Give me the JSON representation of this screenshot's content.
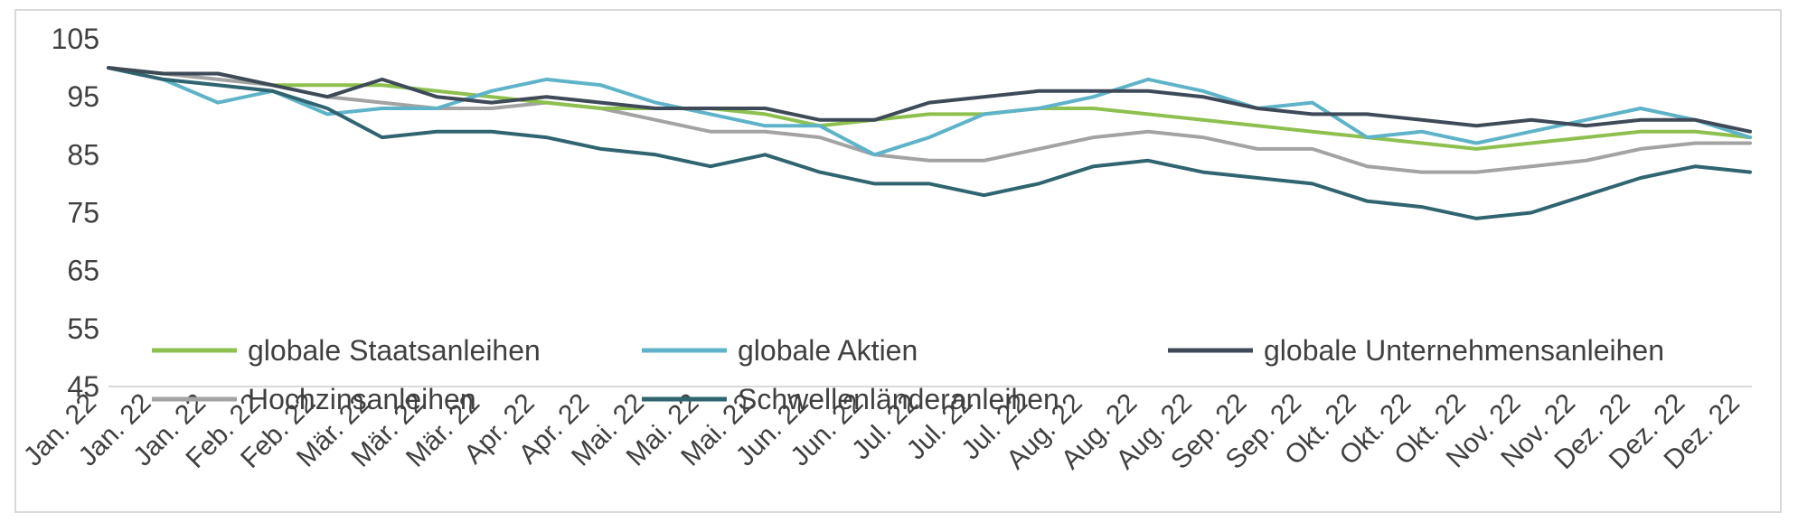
{
  "chart_data": {
    "type": "line",
    "title": "",
    "xlabel": "",
    "ylabel": "",
    "ylim": [
      45,
      105
    ],
    "yticks": [
      45,
      55,
      65,
      75,
      85,
      95,
      105
    ],
    "x_tick_labels": [
      "Jan. 22",
      "Jan. 22",
      "Jan. 22",
      "Feb. 22",
      "Feb. 22",
      "Mär. 22",
      "Mär. 22",
      "Mär. 22",
      "Apr. 22",
      "Apr. 22",
      "Mai. 22",
      "Mai. 22",
      "Mai. 22",
      "Jun. 22",
      "Jun. 22",
      "Jul. 22",
      "Jul. 22",
      "Jul. 22",
      "Aug. 22",
      "Aug. 22",
      "Aug. 22",
      "Sep. 22",
      "Sep. 22",
      "Okt. 22",
      "Okt. 22",
      "Okt. 22",
      "Nov. 22",
      "Nov. 22",
      "Dez. 22",
      "Dez. 22",
      "Dez. 22"
    ],
    "grid": false,
    "legend_position": "bottom-inside",
    "series": [
      {
        "name": "globale Staatsanleihen",
        "color": "#8dc04f",
        "values": [
          100,
          99,
          99,
          97,
          97,
          97,
          96,
          95,
          94,
          93,
          93,
          93,
          92,
          90,
          91,
          92,
          92,
          93,
          93,
          92,
          91,
          90,
          89,
          88,
          87,
          86,
          87,
          88,
          89,
          89,
          88
        ]
      },
      {
        "name": "globale Aktien",
        "color": "#5fb3c8",
        "values": [
          100,
          98,
          94,
          96,
          92,
          93,
          93,
          96,
          98,
          97,
          94,
          92,
          90,
          90,
          85,
          88,
          92,
          93,
          95,
          98,
          96,
          93,
          94,
          88,
          89,
          87,
          89,
          91,
          93,
          91,
          88
        ]
      },
      {
        "name": "globale Unternehmensanleihen",
        "color": "#3f4a58",
        "values": [
          100,
          99,
          99,
          97,
          95,
          98,
          95,
          94,
          95,
          94,
          93,
          93,
          93,
          91,
          91,
          94,
          95,
          96,
          96,
          96,
          95,
          93,
          92,
          92,
          91,
          90,
          91,
          90,
          91,
          91,
          89
        ]
      },
      {
        "name": "Hochzinsanleihen",
        "color": "#a3a3a3",
        "values": [
          100,
          99,
          98,
          97,
          95,
          94,
          93,
          93,
          94,
          93,
          91,
          89,
          89,
          88,
          85,
          84,
          84,
          86,
          88,
          89,
          88,
          86,
          86,
          83,
          82,
          82,
          83,
          84,
          86,
          87,
          87
        ]
      },
      {
        "name": "Schwellenländeranleihen",
        "color": "#2f6470",
        "values": [
          100,
          98,
          97,
          96,
          93,
          88,
          89,
          89,
          88,
          86,
          85,
          83,
          85,
          82,
          80,
          80,
          78,
          80,
          83,
          84,
          82,
          81,
          80,
          77,
          76,
          74,
          75,
          78,
          81,
          83,
          82
        ]
      }
    ]
  }
}
